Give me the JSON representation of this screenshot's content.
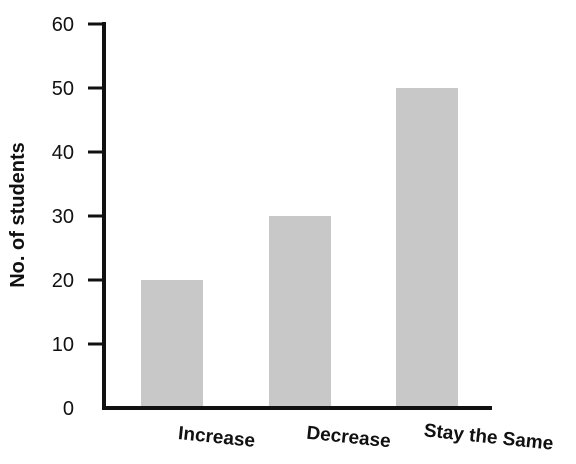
{
  "chart_data": {
    "type": "bar",
    "title": "",
    "xlabel": "",
    "ylabel": "No. of students",
    "categories": [
      "Increase",
      "Decrease",
      "Stay the Same"
    ],
    "values": [
      20,
      30,
      50
    ],
    "ylim": [
      0,
      60
    ],
    "yticks": [
      "0",
      "10",
      "20",
      "30",
      "40",
      "50",
      "60"
    ],
    "grid": false,
    "legend": "none",
    "bar_color": "#c8c8c8",
    "axis_color": "#111111"
  }
}
